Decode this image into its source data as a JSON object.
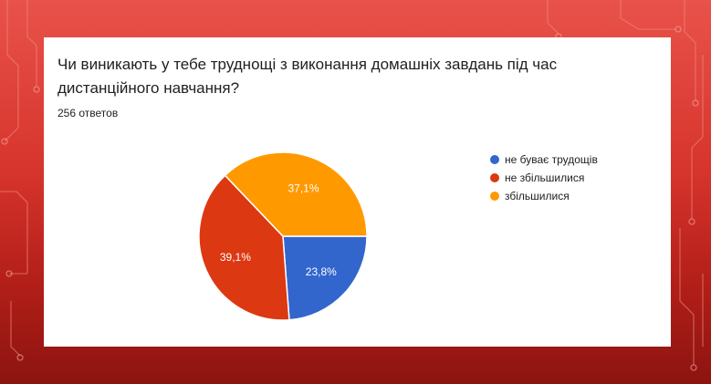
{
  "question": "Чи виникають у тебе труднощі з виконання домашніх завдань під час дистанційного навчання?",
  "response_count": "256 ответов",
  "chart_data": {
    "type": "pie",
    "slices": [
      {
        "label": "не буває трудощів",
        "value": 23.8,
        "display": "23,8%",
        "color": "#3366cc"
      },
      {
        "label": "не збільшилися",
        "value": 39.1,
        "display": "39,1%",
        "color": "#dc3912"
      },
      {
        "label": "збільшилися",
        "value": 37.1,
        "display": "37,1%",
        "color": "#ff9900"
      }
    ],
    "legend_position": "right"
  }
}
